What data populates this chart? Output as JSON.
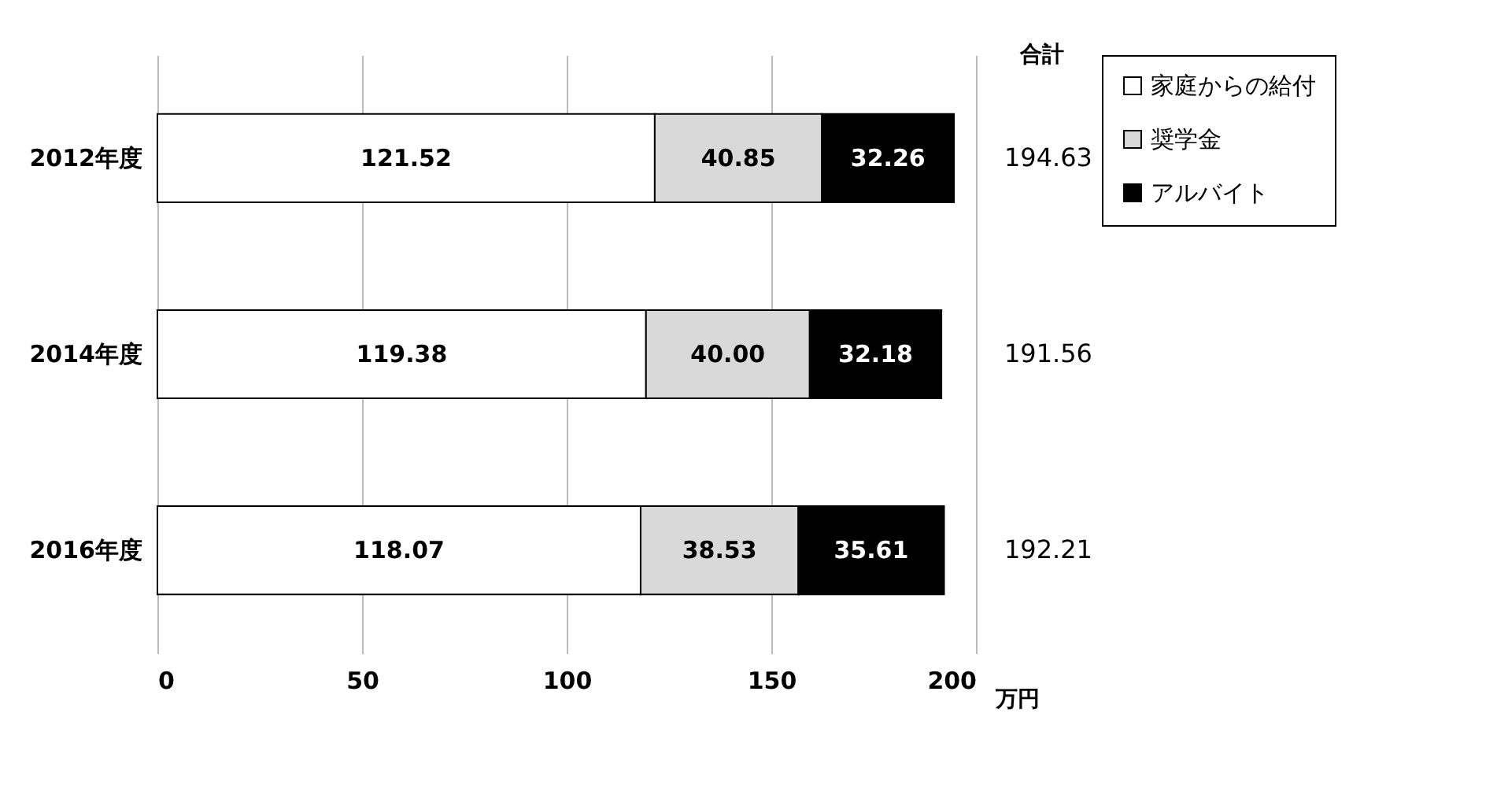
{
  "chart_data": {
    "type": "bar",
    "orientation": "horizontal",
    "stacked": true,
    "categories": [
      "2012年度",
      "2014年度",
      "2016年度"
    ],
    "series": [
      {
        "name": "家庭からの給付",
        "color": "#ffffff",
        "values": [
          121.52,
          119.38,
          118.07
        ],
        "value_labels": [
          "121.52",
          "119.38",
          "118.07"
        ]
      },
      {
        "name": "奨学金",
        "color": "#d9d9d9",
        "values": [
          40.85,
          40.0,
          38.53
        ],
        "value_labels": [
          "40.85",
          "40.00",
          "38.53"
        ]
      },
      {
        "name": "アルバイト",
        "color": "#000000",
        "values": [
          32.26,
          32.18,
          35.61
        ],
        "value_labels": [
          "32.26",
          "32.18",
          "35.61"
        ]
      }
    ],
    "totals": [
      "194.63",
      "191.56",
      "192.21"
    ],
    "annotations": [
      "合計"
    ],
    "xlim": [
      0,
      200
    ],
    "xticks": [
      0,
      50,
      100,
      150,
      200
    ],
    "xlabel": "万円",
    "grid": "x",
    "legend": "right"
  }
}
